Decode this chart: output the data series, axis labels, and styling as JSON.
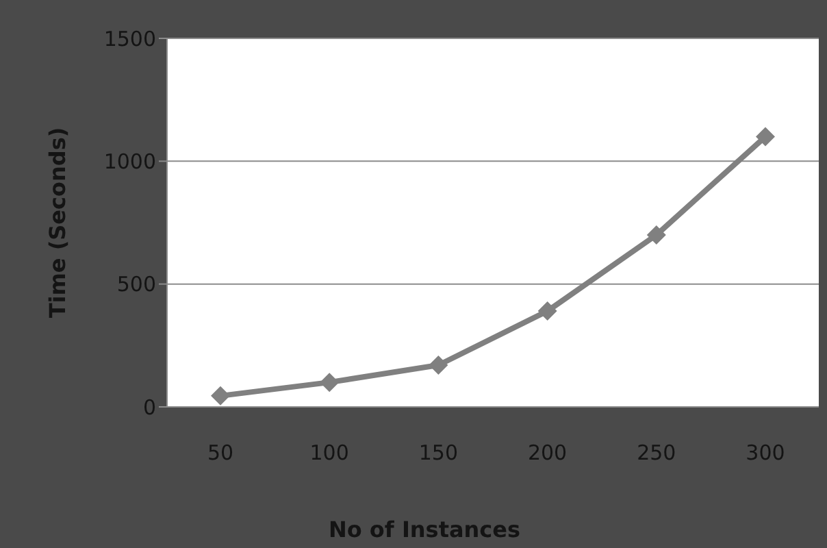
{
  "chart_data": {
    "type": "line",
    "xlabel": "No of Instances",
    "ylabel": "Time   (Seconds)",
    "categories": [
      "50",
      "100",
      "150",
      "200",
      "250",
      "300"
    ],
    "series": [
      {
        "color": "#808080",
        "values": [
          45,
          100,
          170,
          390,
          700,
          1100
        ]
      }
    ],
    "ylim": [
      0,
      1500
    ],
    "yticks": [
      0,
      500,
      1000,
      1500
    ],
    "grid": "y",
    "marker": "diamond",
    "line_style": "solid",
    "legend": false
  }
}
